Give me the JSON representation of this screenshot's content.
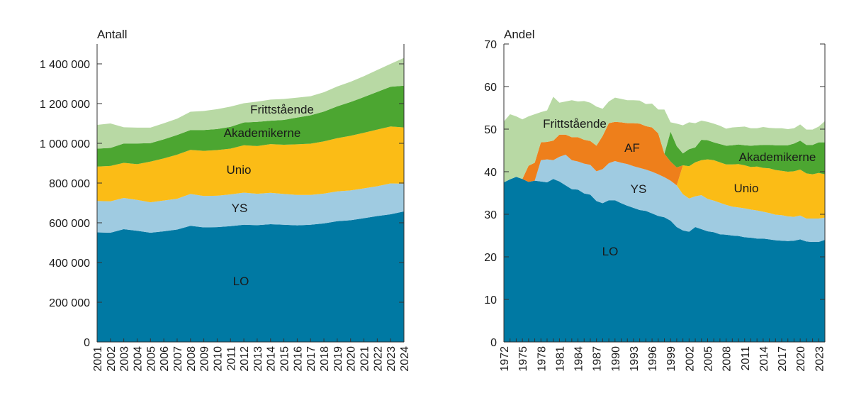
{
  "chart_data": [
    {
      "type": "area",
      "stacked": true,
      "ylabel": "Antall",
      "ylim": [
        0,
        1500000
      ],
      "yticks": [
        0,
        200000,
        400000,
        600000,
        800000,
        1000000,
        1200000,
        1400000
      ],
      "ytick_labels": [
        "0",
        "200 000",
        "400 000",
        "600 000",
        "800 000",
        "1 000 000",
        "1 200 000",
        "1 400 000"
      ],
      "x": [
        2001,
        2002,
        2003,
        2004,
        2005,
        2006,
        2007,
        2008,
        2009,
        2010,
        2011,
        2012,
        2013,
        2014,
        2015,
        2016,
        2017,
        2018,
        2019,
        2020,
        2021,
        2022,
        2023,
        2024
      ],
      "xtick_labels": [
        "2001",
        "2002",
        "2003",
        "2004",
        "2005",
        "2006",
        "2007",
        "2008",
        "2009",
        "2010",
        "2011",
        "2012",
        "2013",
        "2014",
        "2015",
        "2016",
        "2017",
        "2018",
        "2019",
        "2020",
        "2021",
        "2022",
        "2023",
        "2024"
      ],
      "series": [
        {
          "name": "LO",
          "color": "#0079a3",
          "values": [
            552000,
            550000,
            568000,
            560000,
            550000,
            557000,
            566000,
            585000,
            577000,
            578000,
            583000,
            590000,
            588000,
            593000,
            590000,
            587000,
            590000,
            597000,
            608000,
            613000,
            623000,
            634000,
            643000,
            657000
          ]
        },
        {
          "name": "YS",
          "color": "#9fcbe1",
          "values": [
            158000,
            158000,
            157000,
            155000,
            153000,
            155000,
            155000,
            160000,
            158000,
            158000,
            160000,
            162000,
            158000,
            158000,
            155000,
            153000,
            150000,
            150000,
            150000,
            150000,
            150000,
            150000,
            155000,
            140000
          ]
        },
        {
          "name": "Unio",
          "color": "#fbbc16",
          "values": [
            173000,
            178000,
            177000,
            180000,
            205000,
            212000,
            222000,
            222000,
            227000,
            230000,
            230000,
            238000,
            240000,
            245000,
            248000,
            255000,
            258000,
            263000,
            268000,
            275000,
            280000,
            285000,
            287000,
            283000
          ]
        },
        {
          "name": "Akademikerne",
          "color": "#4ca631",
          "values": [
            90000,
            91000,
            97000,
            104000,
            93000,
            96000,
            99000,
            100000,
            105000,
            106000,
            110000,
            115000,
            122000,
            118000,
            125000,
            135000,
            143000,
            150000,
            160000,
            170000,
            180000,
            190000,
            200000,
            210000
          ]
        },
        {
          "name": "Frittstående",
          "color": "#b8d9a4",
          "values": [
            120000,
            123000,
            82000,
            80000,
            78000,
            81000,
            82000,
            92000,
            96000,
            100000,
            102000,
            97000,
            102000,
            106000,
            105000,
            100000,
            96000,
            97000,
            100000,
            102000,
            105000,
            110000,
            115000,
            140000
          ]
        }
      ]
    },
    {
      "type": "area",
      "stacked": true,
      "ylabel": "Andel",
      "ylim": [
        0,
        70
      ],
      "yticks": [
        0,
        10,
        20,
        30,
        40,
        50,
        60,
        70
      ],
      "ytick_labels": [
        "0",
        "10",
        "20",
        "30",
        "40",
        "50",
        "60",
        "70"
      ],
      "x": [
        1972,
        1973,
        1974,
        1975,
        1976,
        1977,
        1978,
        1979,
        1980,
        1981,
        1982,
        1983,
        1984,
        1985,
        1986,
        1987,
        1988,
        1989,
        1990,
        1991,
        1992,
        1993,
        1994,
        1995,
        1996,
        1997,
        1998,
        1999,
        2000,
        2001,
        2002,
        2003,
        2004,
        2005,
        2006,
        2007,
        2008,
        2009,
        2010,
        2011,
        2012,
        2013,
        2014,
        2015,
        2016,
        2017,
        2018,
        2019,
        2020,
        2021,
        2022,
        2023,
        2024
      ],
      "xtick_labels": [
        "1972",
        "1975",
        "1978",
        "1981",
        "1984",
        "1987",
        "1990",
        "1993",
        "1996",
        "1999",
        "2002",
        "2005",
        "2008",
        "2011",
        "2014",
        "2017",
        "2020",
        "2023"
      ],
      "series": [
        {
          "name": "LO",
          "color": "#0079a3",
          "values": [
            37.5,
            38.2,
            38.8,
            38.3,
            37.6,
            37.9,
            37.7,
            37.5,
            38.3,
            37.7,
            36.8,
            35.9,
            35.8,
            34.9,
            34.6,
            33.1,
            32.6,
            33.3,
            33.3,
            32.6,
            32.0,
            31.5,
            31.0,
            30.8,
            30.2,
            29.6,
            29.3,
            28.5,
            27.0,
            26.2,
            25.9,
            27.0,
            26.5,
            26.0,
            25.8,
            25.3,
            25.2,
            25.0,
            24.9,
            24.6,
            24.5,
            24.3,
            24.3,
            24.1,
            23.9,
            23.8,
            23.7,
            23.8,
            24.1,
            23.6,
            23.5,
            23.5,
            24.0
          ]
        },
        {
          "name": "YS",
          "color": "#9fcbe1",
          "values": [
            0,
            0,
            0,
            0,
            0,
            0,
            5.0,
            5.4,
            4.4,
            5.8,
            7.2,
            6.8,
            6.6,
            7.0,
            7.0,
            7.0,
            8.0,
            8.7,
            9.2,
            9.5,
            9.8,
            9.8,
            9.9,
            9.7,
            9.8,
            9.8,
            9.4,
            9.4,
            9.8,
            8.5,
            7.8,
            7.2,
            8.0,
            7.6,
            7.4,
            7.4,
            7.0,
            6.8,
            6.7,
            6.8,
            6.6,
            6.6,
            6.3,
            6.2,
            6.0,
            6.0,
            5.8,
            5.6,
            5.6,
            5.4,
            5.5,
            5.5,
            5.2
          ]
        },
        {
          "name": "Unio",
          "color": "#fbbc16",
          "values": [
            0,
            0,
            0,
            0,
            0,
            0,
            0,
            0,
            0,
            0,
            0,
            0,
            0,
            0,
            0,
            0,
            0,
            0,
            0,
            0,
            0,
            0,
            0,
            0,
            0,
            0,
            0,
            0,
            0,
            6.8,
            7.6,
            8.0,
            8.2,
            9.3,
            9.5,
            9.5,
            9.5,
            9.9,
            10.2,
            10.1,
            10.0,
            10.3,
            10.3,
            10.5,
            10.5,
            10.4,
            10.5,
            10.7,
            10.8,
            10.6,
            10.4,
            10.7,
            10.2
          ]
        },
        {
          "name": "AF",
          "color": "#ee7f1b",
          "values": [
            0,
            0,
            0,
            0,
            3.8,
            4.2,
            4.2,
            4.1,
            4.6,
            5.2,
            4.7,
            5.4,
            5.7,
            5.6,
            5.6,
            6.0,
            7.8,
            9.4,
            9.2,
            9.5,
            9.6,
            10.1,
            10.4,
            10.2,
            10.4,
            9.6,
            5.5,
            4.5,
            4.2,
            0,
            0,
            0,
            0,
            0,
            0,
            0,
            0,
            0,
            0,
            0,
            0,
            0,
            0,
            0,
            0,
            0,
            0,
            0,
            0,
            0,
            0,
            0,
            0
          ]
        },
        {
          "name": "Akademikerne",
          "color": "#4ca631",
          "values": [
            0,
            0,
            0,
            0,
            0,
            0,
            0,
            0,
            0,
            0,
            0,
            0,
            0,
            0,
            0,
            0,
            0,
            0,
            0,
            0,
            0,
            0,
            0,
            0,
            0,
            0,
            0,
            7.0,
            5.0,
            2.8,
            4.0,
            3.5,
            4.8,
            4.5,
            4.2,
            4.3,
            4.4,
            4.5,
            4.6,
            4.7,
            5.0,
            5.0,
            5.4,
            5.5,
            5.8,
            6.0,
            6.2,
            6.5,
            6.8,
            6.7,
            6.9,
            7.2,
            7.5
          ]
        },
        {
          "name": "Frittstående",
          "color": "#b8d9a4",
          "values": [
            14.3,
            15.3,
            14.2,
            14.0,
            11.6,
            11.4,
            7.1,
            7.4,
            10.3,
            7.5,
            7.8,
            8.7,
            8.4,
            9.1,
            9.0,
            9.2,
            6.4,
            5.1,
            5.7,
            5.5,
            5.4,
            5.4,
            5.4,
            5.2,
            5.6,
            5.6,
            10.4,
            2.2,
            5.3,
            6.6,
            6.3,
            5.7,
            4.5,
            4.3,
            4.4,
            4.3,
            4.0,
            4.2,
            4.1,
            4.4,
            4.1,
            4.0,
            4.2,
            4.0,
            4.0,
            4.0,
            3.8,
            3.6,
            3.8,
            3.6,
            3.6,
            3.7,
            5.0
          ]
        }
      ]
    }
  ],
  "labels": {
    "left": {
      "LO": "LO",
      "YS": "YS",
      "Unio": "Unio",
      "Akademikerne": "Akademikerne",
      "Frittstaende": "Frittstående"
    },
    "right": {
      "LO": "LO",
      "YS": "YS",
      "AF": "AF",
      "Unio": "Unio",
      "Akademikerne": "Akademikerne",
      "Frittstaende": "Frittstående"
    }
  }
}
